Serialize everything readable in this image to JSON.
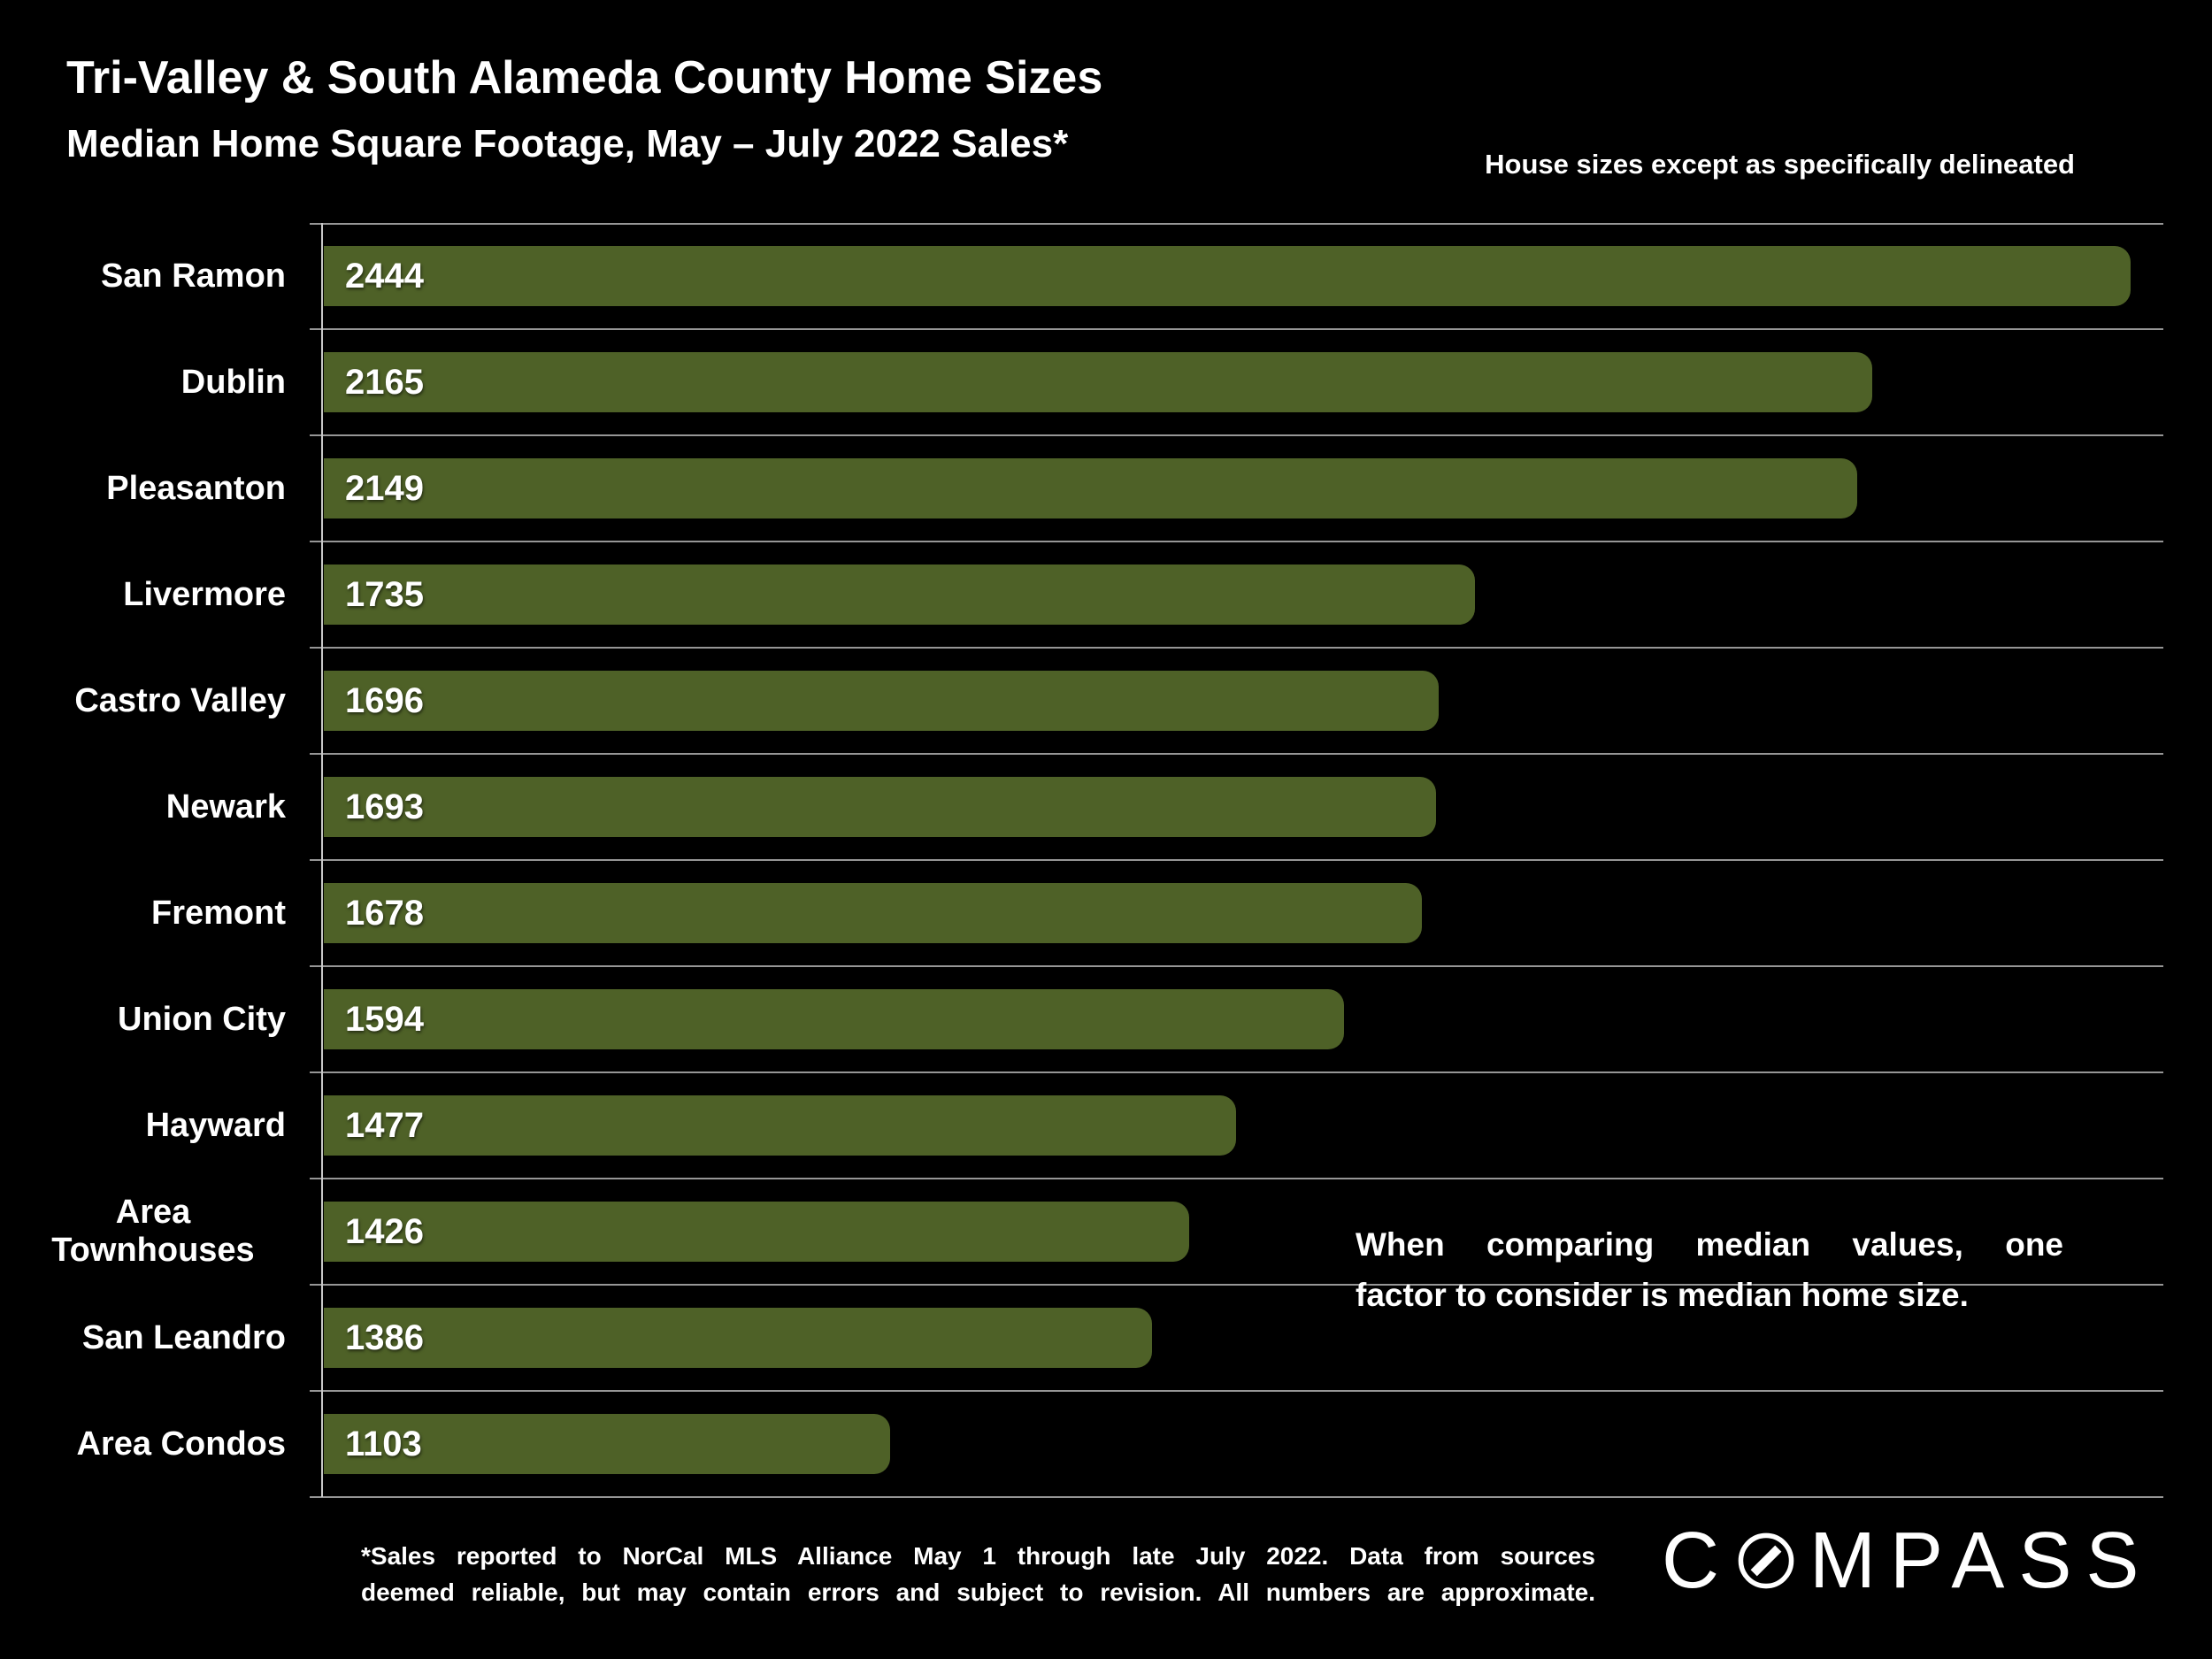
{
  "header": {
    "title": "Tri-Valley & South Alameda County Home Sizes",
    "subtitle": "Median Home Square Footage, May – July 2022 Sales*",
    "top_note": "House sizes except as specifically delineated"
  },
  "annotation": {
    "line1": "When comparing median values, one",
    "line2": "factor to consider is median home size."
  },
  "footnote": {
    "line1": "*Sales reported to NorCal MLS Alliance May 1 through late July 2022. Data from sources",
    "line2": "deemed reliable, but may contain errors and subject to revision. All numbers are approximate."
  },
  "logo": {
    "name": "COMPASS",
    "prefix": "C",
    "suffix": "MPASS"
  },
  "colors": {
    "background": "#000000",
    "text": "#ffffff",
    "bar": "#4e6127",
    "axis": "#c8c8c8",
    "gridline": "#969696"
  },
  "chart_data": {
    "type": "bar",
    "orientation": "horizontal",
    "title": "Tri-Valley & South Alameda County Home Sizes",
    "subtitle": "Median Home Square Footage, May – July 2022 Sales*",
    "xlabel": "",
    "ylabel": "",
    "categories": [
      "San Ramon",
      "Dublin",
      "Pleasanton",
      "Livermore",
      "Castro Valley",
      "Newark",
      "Fremont",
      "Union City",
      "Hayward",
      "Area Townhouses",
      "San Leandro",
      "Area Condos"
    ],
    "values": [
      2444,
      2165,
      2149,
      1735,
      1696,
      1693,
      1678,
      1594,
      1477,
      1426,
      1386,
      1103
    ],
    "xlim": [
      490,
      2475
    ],
    "grid": "category-separator-lines",
    "value_labels": "inside-bar-start",
    "legend": "none"
  }
}
